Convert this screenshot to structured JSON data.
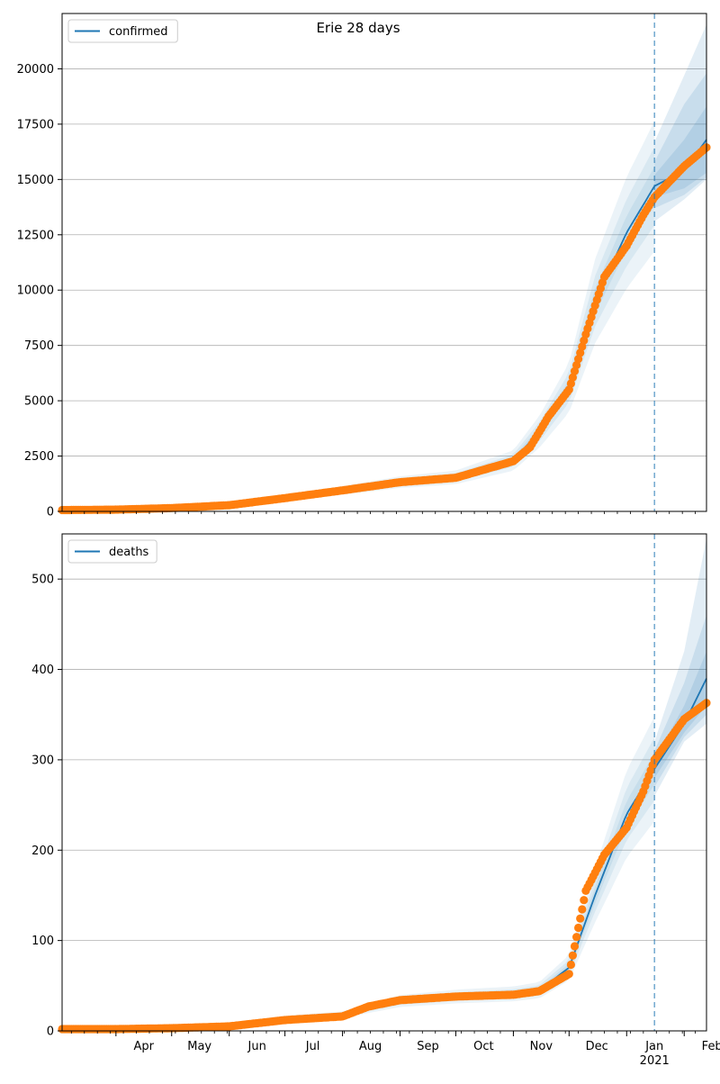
{
  "title": "Erie 28 days",
  "colors": {
    "line": "#1f77b4",
    "points": "#ff7f0e",
    "band": "#1f77b4",
    "vline": "#1f77b4",
    "grid": "#b0b0b0"
  },
  "chart_data": [
    {
      "type": "line",
      "legend": "confirmed",
      "legend_position": "top-left",
      "ylim": [
        0,
        22500
      ],
      "yticks": [
        0,
        2500,
        5000,
        7500,
        10000,
        12500,
        15000,
        17500,
        20000
      ],
      "grid": "horizontal",
      "xlim": [
        "2020-03-03",
        "2021-02-13"
      ],
      "forecast_start": "2021-01-16",
      "model_series": {
        "name": "confirmed",
        "x": [
          "2020-03-03",
          "2020-04-01",
          "2020-05-01",
          "2020-06-01",
          "2020-07-01",
          "2020-08-01",
          "2020-09-01",
          "2020-10-01",
          "2020-11-01",
          "2020-11-15",
          "2020-12-01",
          "2020-12-15",
          "2021-01-01",
          "2021-01-16"
        ],
        "y": [
          60,
          80,
          150,
          300,
          600,
          950,
          1320,
          1540,
          2300,
          3600,
          5600,
          9500,
          12600,
          14700
        ]
      },
      "forecast": {
        "x": [
          "2021-01-16",
          "2021-02-01",
          "2021-02-13"
        ],
        "median": [
          14700,
          15400,
          16800
        ],
        "bands": [
          {
            "low": [
              14200,
              14600,
              15300
            ],
            "high": [
              15200,
              16800,
              18300
            ]
          },
          {
            "low": [
              13700,
              14300,
              15100
            ],
            "high": [
              15800,
              18400,
              19800
            ]
          },
          {
            "low": [
              13100,
              14100,
              15000
            ],
            "high": [
              16700,
              19700,
              22000
            ]
          }
        ]
      },
      "observed": {
        "x": [
          "2020-03-03",
          "2020-04-01",
          "2020-05-01",
          "2020-06-01",
          "2020-07-01",
          "2020-08-01",
          "2020-09-01",
          "2020-10-01",
          "2020-11-01",
          "2020-11-10",
          "2020-11-20",
          "2020-12-01",
          "2020-12-10",
          "2020-12-20",
          "2021-01-01",
          "2021-01-10",
          "2021-01-16",
          "2021-02-01",
          "2021-02-13"
        ],
        "y": [
          60,
          80,
          150,
          280,
          600,
          950,
          1320,
          1520,
          2270,
          2900,
          4300,
          5500,
          8000,
          10600,
          12000,
          13400,
          14200,
          15600,
          16450
        ]
      }
    },
    {
      "type": "line",
      "legend": "deaths",
      "legend_position": "top-left",
      "ylim": [
        0,
        550
      ],
      "yticks": [
        0,
        100,
        200,
        300,
        400,
        500
      ],
      "grid": "horizontal",
      "xlim": [
        "2020-03-03",
        "2021-02-13"
      ],
      "forecast_start": "2021-01-16",
      "x_ticks": [
        "Apr",
        "May",
        "Jun",
        "Jul",
        "Aug",
        "Sep",
        "Oct",
        "Nov",
        "Dec",
        "Jan",
        "Feb"
      ],
      "x_tick_dates": [
        "2020-04-01",
        "2020-05-01",
        "2020-06-01",
        "2020-07-01",
        "2020-08-01",
        "2020-09-01",
        "2020-10-01",
        "2020-11-01",
        "2020-12-01",
        "2021-01-01",
        "2021-02-01"
      ],
      "x_year_label": "2021",
      "model_series": {
        "name": "deaths",
        "x": [
          "2020-03-03",
          "2020-04-01",
          "2020-05-01",
          "2020-06-01",
          "2020-07-01",
          "2020-08-01",
          "2020-09-01",
          "2020-10-01",
          "2020-11-01",
          "2020-11-15",
          "2020-12-01",
          "2020-12-15",
          "2021-01-01",
          "2021-01-16"
        ],
        "y": [
          2,
          2,
          3,
          6,
          14,
          18,
          33,
          38,
          41,
          45,
          70,
          150,
          240,
          290
        ]
      },
      "forecast": {
        "x": [
          "2021-01-16",
          "2021-02-01",
          "2021-02-13"
        ],
        "median": [
          290,
          340,
          390
        ],
        "bands": [
          {
            "low": [
              280,
              330,
              360
            ],
            "high": [
              300,
              360,
              420
            ]
          },
          {
            "low": [
              270,
              325,
              350
            ],
            "high": [
              310,
              385,
              460
            ]
          },
          {
            "low": [
              260,
              320,
              340
            ],
            "high": [
              320,
              420,
              545
            ]
          }
        ]
      },
      "observed": {
        "x": [
          "2020-03-03",
          "2020-04-01",
          "2020-05-01",
          "2020-06-01",
          "2020-07-01",
          "2020-08-01",
          "2020-08-15",
          "2020-09-01",
          "2020-10-01",
          "2020-11-01",
          "2020-11-15",
          "2020-12-01",
          "2020-12-10",
          "2020-12-20",
          "2021-01-01",
          "2021-01-10",
          "2021-01-16",
          "2021-02-01",
          "2021-02-13"
        ],
        "y": [
          2,
          2,
          3,
          5,
          12,
          16,
          27,
          34,
          38,
          40,
          44,
          63,
          155,
          195,
          225,
          265,
          300,
          345,
          363
        ]
      }
    }
  ]
}
